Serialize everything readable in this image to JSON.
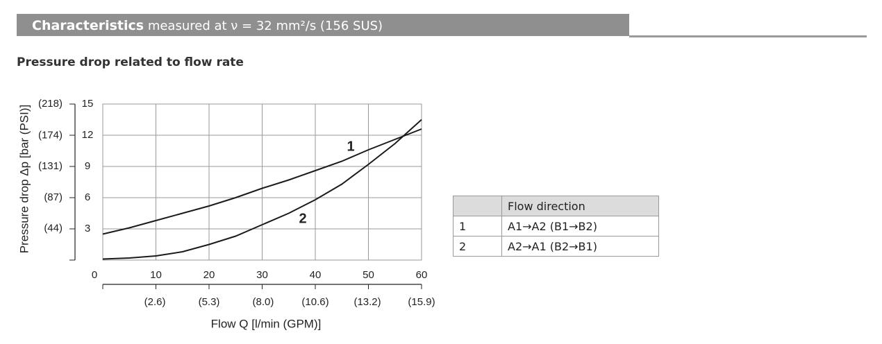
{
  "header": {
    "title": "Characteristics",
    "subtitle": "measured at ν = 32 mm²/s (156 SUS)"
  },
  "section_title": "Pressure drop related to flow rate",
  "chart_data": {
    "type": "line",
    "xlabel": "Flow Q [l/min (GPM)]",
    "ylabel": "Pressure drop Δp [bar (PSI)]",
    "x": [
      0,
      5,
      10,
      15,
      20,
      25,
      30,
      35,
      40,
      45,
      50,
      55,
      60
    ],
    "series": [
      {
        "name": "1",
        "color": "#1a1a1a",
        "values": [
          2.5,
          3.1,
          3.8,
          4.5,
          5.2,
          6.0,
          6.9,
          7.7,
          8.6,
          9.5,
          10.6,
          11.6,
          12.6
        ]
      },
      {
        "name": "2",
        "color": "#1a1a1a",
        "values": [
          0.1,
          0.2,
          0.4,
          0.8,
          1.5,
          2.3,
          3.4,
          4.5,
          5.8,
          7.3,
          9.2,
          11.2,
          13.5
        ]
      }
    ],
    "xlim": [
      0,
      60
    ],
    "xticks": [
      0,
      10,
      20,
      30,
      40,
      50,
      60
    ],
    "x2lim": [
      0,
      15.9
    ],
    "x2ticks": [
      {
        "value": 2.6,
        "label": "(2.6)"
      },
      {
        "value": 5.3,
        "label": "(5.3)"
      },
      {
        "value": 8.0,
        "label": "(8.0)"
      },
      {
        "value": 10.6,
        "label": "(10.6)"
      },
      {
        "value": 13.2,
        "label": "(13.2)"
      },
      {
        "value": 15.9,
        "label": "(15.9)"
      }
    ],
    "ylim": [
      0,
      15
    ],
    "yticks": [
      3,
      6,
      9,
      12,
      15
    ],
    "y2lim": [
      0,
      218
    ],
    "y2ticks": [
      {
        "value": 44,
        "label": "(44)"
      },
      {
        "value": 87,
        "label": "(87)"
      },
      {
        "value": 131,
        "label": "(131)"
      },
      {
        "value": 174,
        "label": "(174)"
      },
      {
        "value": 218,
        "label": "(218)"
      }
    ],
    "grid": true
  },
  "table": {
    "header": [
      "Flow direction"
    ],
    "rows": [
      [
        "1",
        "A1→A2 (B1→B2)"
      ],
      [
        "2",
        "A2→A1 (B2→B1)"
      ]
    ]
  }
}
